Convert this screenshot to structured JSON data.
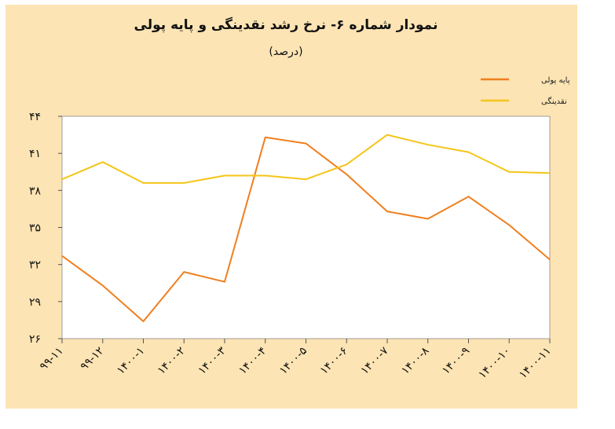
{
  "title": "نمودار شماره ۶- نرخ رشد نقدینگی و پایه پولی",
  "subtitle": "(درصد)",
  "colors": {
    "background": "#FCE4B4",
    "plot_area": "#FFFFFF",
    "base_money": "#F07F1E",
    "liquidity": "#F5C518"
  },
  "chart_data": {
    "type": "line",
    "title": "نمودار شماره ۶- نرخ رشد نقدینگی و پایه پولی",
    "subtitle": "(درصد)",
    "xlabel": "",
    "ylabel": "",
    "ylim": [
      26,
      44
    ],
    "yticks": [
      26,
      29,
      32,
      35,
      38,
      41,
      44
    ],
    "ytick_labels": [
      "۲۶",
      "۲۹",
      "۳۲",
      "۳۵",
      "۳۸",
      "۴۱",
      "۴۴"
    ],
    "categories": [
      "۹۹-۱۱",
      "۹۹-۱۲",
      "۱۴۰۰-۱",
      "۱۴۰۰-۲",
      "۱۴۰۰-۳",
      "۱۴۰۰-۴",
      "۱۴۰۰-۵",
      "۱۴۰۰-۶",
      "۱۴۰۰-۷",
      "۱۴۰۰-۸",
      "۱۴۰۰-۹",
      "۱۴۰۰-۱۰",
      "۱۴۰۰-۱۱"
    ],
    "grid": false,
    "legend_position": "top-right",
    "series": [
      {
        "name": "پایه پولی",
        "color": "#F07F1E",
        "values": [
          32.7,
          30.3,
          27.4,
          31.4,
          30.6,
          42.3,
          41.8,
          39.3,
          36.3,
          35.7,
          37.5,
          35.2,
          32.4
        ]
      },
      {
        "name": "نقدینگی",
        "color": "#F5C518",
        "values": [
          38.9,
          40.3,
          38.6,
          38.6,
          39.2,
          39.2,
          38.9,
          40.1,
          42.5,
          41.7,
          41.1,
          39.5,
          39.4
        ]
      }
    ]
  }
}
